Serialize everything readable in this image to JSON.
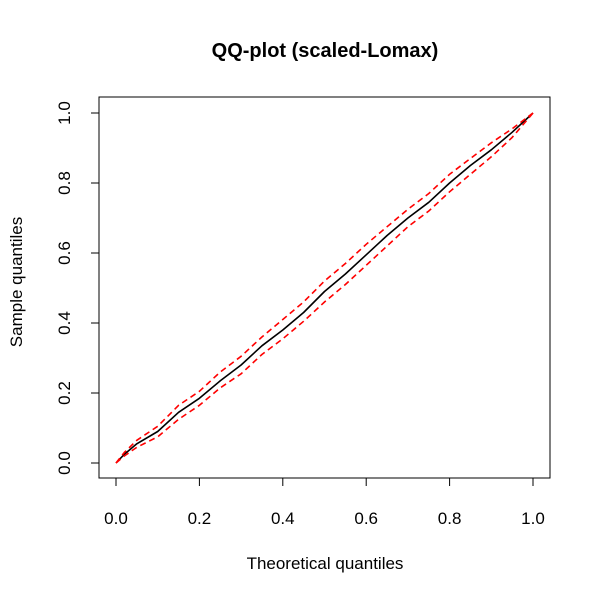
{
  "chart_data": {
    "type": "line",
    "title": "QQ-plot (scaled-Lomax)",
    "xlabel": "Theoretical quantiles",
    "ylabel": "Sample quantiles",
    "xlim": [
      0.0,
      1.0
    ],
    "ylim": [
      0.0,
      1.0
    ],
    "xticks": [
      "0.0",
      "0.2",
      "0.4",
      "0.6",
      "0.8",
      "1.0"
    ],
    "yticks": [
      "0.0",
      "0.2",
      "0.4",
      "0.6",
      "0.8",
      "1.0"
    ],
    "grid": false,
    "legend": "none",
    "x": [
      0.0,
      0.02,
      0.05,
      0.1,
      0.15,
      0.2,
      0.25,
      0.3,
      0.35,
      0.4,
      0.45,
      0.5,
      0.55,
      0.6,
      0.65,
      0.7,
      0.75,
      0.8,
      0.85,
      0.9,
      0.95,
      1.0
    ],
    "series": [
      {
        "color": "#000000",
        "style": "solid",
        "values": [
          0.0,
          0.025,
          0.055,
          0.09,
          0.145,
          0.185,
          0.235,
          0.28,
          0.335,
          0.38,
          0.43,
          0.49,
          0.54,
          0.595,
          0.65,
          0.7,
          0.745,
          0.8,
          0.85,
          0.895,
          0.945,
          1.0
        ]
      },
      {
        "color": "#ff0000",
        "style": "dashed",
        "values": [
          0.0,
          0.03,
          0.065,
          0.105,
          0.165,
          0.205,
          0.26,
          0.305,
          0.36,
          0.41,
          0.46,
          0.52,
          0.57,
          0.625,
          0.675,
          0.725,
          0.77,
          0.825,
          0.87,
          0.915,
          0.955,
          1.0
        ]
      },
      {
        "color": "#ff0000",
        "style": "dashed",
        "values": [
          0.0,
          0.02,
          0.045,
          0.075,
          0.125,
          0.165,
          0.215,
          0.255,
          0.31,
          0.355,
          0.405,
          0.46,
          0.51,
          0.565,
          0.62,
          0.675,
          0.72,
          0.775,
          0.825,
          0.875,
          0.93,
          1.0
        ]
      }
    ]
  }
}
